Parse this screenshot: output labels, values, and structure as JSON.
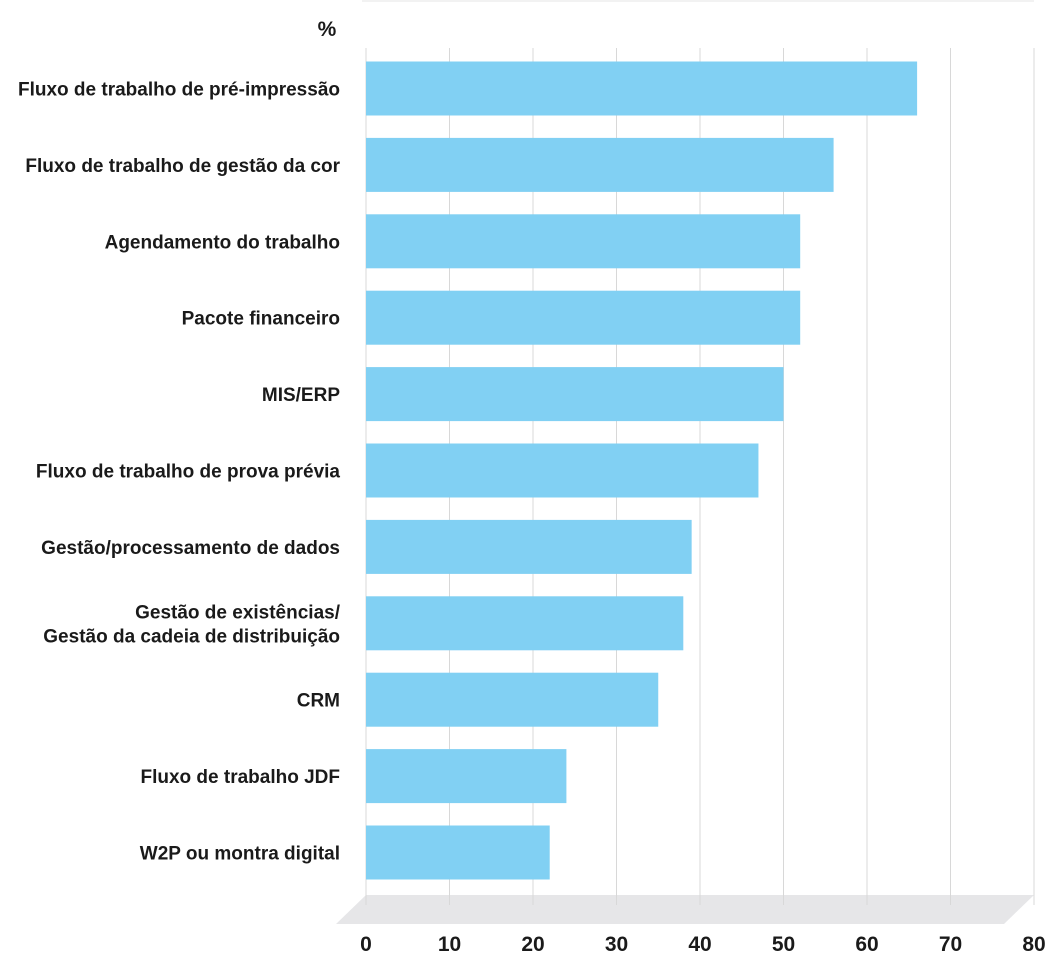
{
  "chart_data": {
    "type": "bar",
    "orientation": "horizontal",
    "unit_label": "%",
    "categories": [
      "Fluxo de trabalho de pré-impressão",
      "Fluxo de trabalho de gestão da cor",
      "Agendamento do trabalho",
      "Pacote financeiro",
      "MIS/ERP",
      "Fluxo de trabalho de prova prévia",
      "Gestão/processamento de dados",
      "Gestão de existências/\nGestão da cadeia de distribuição",
      "CRM",
      "Fluxo de trabalho JDF",
      "W2P ou montra digital"
    ],
    "values": [
      66,
      56,
      52,
      52,
      50,
      47,
      39,
      38,
      35,
      24,
      22
    ],
    "xlim": [
      0,
      80
    ],
    "xticks": [
      0,
      10,
      20,
      30,
      40,
      50,
      60,
      70,
      80
    ],
    "grid": true,
    "colors": {
      "bar": "#81d0f3",
      "grid": "#d8d8d8",
      "floor": "#e6e6e8"
    }
  }
}
